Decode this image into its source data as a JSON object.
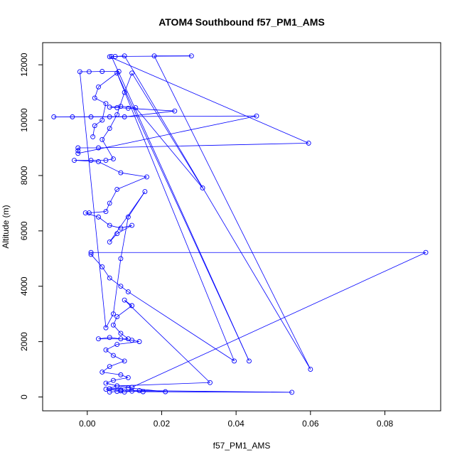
{
  "chart_data": {
    "type": "scatter",
    "title": "ATOM4 Southbound f57_PM1_AMS",
    "xlabel": "f57_PM1_AMS",
    "ylabel": "Altitude (m)",
    "xlim": [
      -0.012,
      0.095
    ],
    "ylim": [
      -500,
      12800
    ],
    "x_ticks": [
      0.0,
      0.02,
      0.04,
      0.06,
      0.08
    ],
    "x_tick_labels": [
      "0.00",
      "0.02",
      "0.04",
      "0.06",
      "0.08"
    ],
    "y_ticks": [
      0,
      2000,
      4000,
      6000,
      8000,
      10000,
      12000
    ],
    "y_tick_labels": [
      "0",
      "2000",
      "4000",
      "6000",
      "8000",
      "10000",
      "12000"
    ],
    "series_color": "#0000ff",
    "marker": "open-circle",
    "connect_points": true,
    "series": [
      {
        "name": "f57_PM1_AMS",
        "points": [
          [
            0.006,
            180
          ],
          [
            0.008,
            200
          ],
          [
            0.01,
            180
          ],
          [
            0.012,
            210
          ],
          [
            0.015,
            190
          ],
          [
            0.055,
            170
          ],
          [
            0.014,
            230
          ],
          [
            0.009,
            260
          ],
          [
            0.006,
            300
          ],
          [
            0.011,
            330
          ],
          [
            0.021,
            190
          ],
          [
            0.009,
            220
          ],
          [
            0.005,
            280
          ],
          [
            0.008,
            400
          ],
          [
            0.033,
            520
          ],
          [
            0.01,
            3500
          ],
          [
            0.012,
            3300
          ],
          [
            0.008,
            2900
          ],
          [
            0.007,
            2600
          ],
          [
            0.009,
            2300
          ],
          [
            0.011,
            2100
          ],
          [
            0.003,
            2100
          ],
          [
            0.006,
            2150
          ],
          [
            0.009,
            2100
          ],
          [
            0.012,
            2050
          ],
          [
            0.014,
            2000
          ],
          [
            0.008,
            1900
          ],
          [
            0.005,
            1700
          ],
          [
            0.007,
            1500
          ],
          [
            0.01,
            1300
          ],
          [
            0.006,
            1100
          ],
          [
            0.004,
            900
          ],
          [
            0.009,
            800
          ],
          [
            0.011,
            700
          ],
          [
            0.007,
            600
          ],
          [
            0.005,
            500
          ],
          [
            0.008,
            400
          ],
          [
            0.012,
            350
          ],
          [
            0.091,
            5220
          ],
          [
            0.001,
            5220
          ],
          [
            0.001,
            5150
          ],
          [
            0.004,
            4700
          ],
          [
            0.006,
            4300
          ],
          [
            0.009,
            4000
          ],
          [
            0.011,
            3800
          ],
          [
            0.0395,
            1300
          ],
          [
            0.008,
            11700
          ],
          [
            0.0435,
            1300
          ],
          [
            0.0065,
            12300
          ],
          [
            0.028,
            12320
          ],
          [
            0.018,
            12320
          ],
          [
            0.06,
            1000
          ],
          [
            0.01,
            12320
          ],
          [
            0.0075,
            12300
          ],
          [
            0.006,
            12290
          ],
          [
            0.0595,
            9170
          ],
          [
            0.003,
            9000
          ],
          [
            -0.0025,
            9000
          ],
          [
            -0.0025,
            8900
          ],
          [
            -0.0025,
            8800
          ],
          [
            0.0455,
            10150
          ],
          [
            -0.009,
            10120
          ],
          [
            -0.004,
            10120
          ],
          [
            0.001,
            10120
          ],
          [
            0.006,
            10120
          ],
          [
            0.01,
            10120
          ],
          [
            0.0235,
            10330
          ],
          [
            0.011,
            10430
          ],
          [
            0.008,
            10450
          ],
          [
            0.006,
            10470
          ],
          [
            0.009,
            10500
          ],
          [
            0.013,
            10450
          ],
          [
            0.031,
            7550
          ],
          [
            0.012,
            11700
          ],
          [
            0.01,
            11000
          ],
          [
            0.008,
            10200
          ],
          [
            0.006,
            9700
          ],
          [
            0.004,
            9300
          ],
          [
            0.007,
            8600
          ],
          [
            0.005,
            8550
          ],
          [
            0.001,
            8550
          ],
          [
            -0.0035,
            8550
          ],
          [
            0.003,
            8500
          ],
          [
            0.009,
            8100
          ],
          [
            0.016,
            7950
          ],
          [
            0.008,
            7500
          ],
          [
            0.006,
            7000
          ],
          [
            0.005,
            6700
          ],
          [
            0.0005,
            6650
          ],
          [
            -0.0005,
            6650
          ],
          [
            0.003,
            6500
          ],
          [
            0.006,
            6200
          ],
          [
            0.009,
            6100
          ],
          [
            0.012,
            6200
          ],
          [
            0.008,
            5900
          ],
          [
            0.006,
            5600
          ],
          [
            0.0155,
            7420
          ],
          [
            0.011,
            6500
          ],
          [
            0.009,
            5000
          ],
          [
            0.007,
            3000
          ],
          [
            0.005,
            2500
          ],
          [
            -0.002,
            11750
          ],
          [
            0.0005,
            11750
          ],
          [
            0.004,
            11760
          ],
          [
            0.0085,
            11760
          ],
          [
            0.003,
            11200
          ],
          [
            0.002,
            10800
          ],
          [
            0.005,
            10600
          ],
          [
            0.004,
            10000
          ],
          [
            0.002,
            9800
          ],
          [
            0.0015,
            9400
          ]
        ]
      }
    ]
  }
}
